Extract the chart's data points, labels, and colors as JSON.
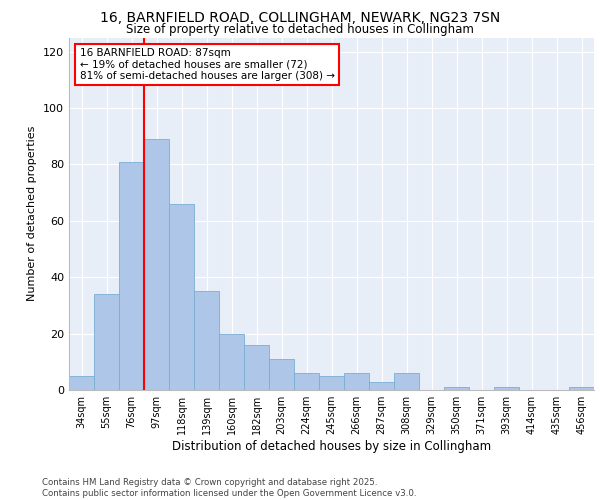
{
  "title_line1": "16, BARNFIELD ROAD, COLLINGHAM, NEWARK, NG23 7SN",
  "title_line2": "Size of property relative to detached houses in Collingham",
  "xlabel": "Distribution of detached houses by size in Collingham",
  "ylabel": "Number of detached properties",
  "categories": [
    "34sqm",
    "55sqm",
    "76sqm",
    "97sqm",
    "118sqm",
    "139sqm",
    "160sqm",
    "182sqm",
    "203sqm",
    "224sqm",
    "245sqm",
    "266sqm",
    "287sqm",
    "308sqm",
    "329sqm",
    "350sqm",
    "371sqm",
    "393sqm",
    "414sqm",
    "435sqm",
    "456sqm"
  ],
  "values": [
    5,
    34,
    81,
    89,
    66,
    35,
    20,
    16,
    11,
    6,
    5,
    6,
    3,
    6,
    0,
    1,
    0,
    1,
    0,
    0,
    1
  ],
  "bar_color": "#aec6e8",
  "bar_edge_color": "#7aadd4",
  "vline_x": 2.5,
  "vline_color": "red",
  "annotation_text": "16 BARNFIELD ROAD: 87sqm\n← 19% of detached houses are smaller (72)\n81% of semi-detached houses are larger (308) →",
  "annotation_box_color": "white",
  "annotation_box_edge_color": "red",
  "ylim": [
    0,
    125
  ],
  "yticks": [
    0,
    20,
    40,
    60,
    80,
    100,
    120
  ],
  "background_color": "#e8eef8",
  "footer_line1": "Contains HM Land Registry data © Crown copyright and database right 2025.",
  "footer_line2": "Contains public sector information licensed under the Open Government Licence v3.0."
}
